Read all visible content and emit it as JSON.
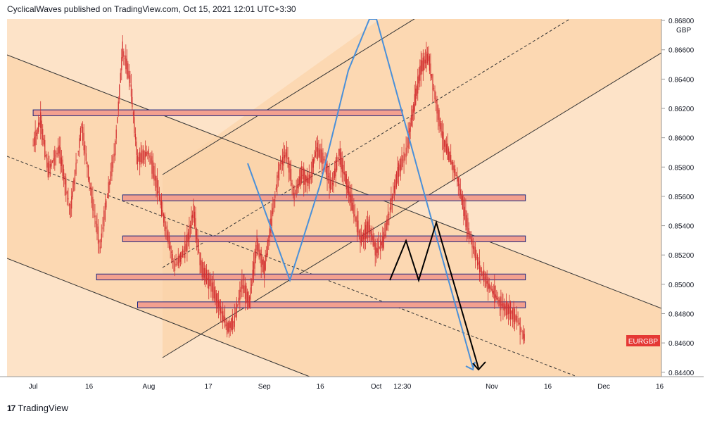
{
  "header": {
    "text": "CyclicalWaves published on TradingView.com, Oct 15, 2021 12:01 UTC+3:30"
  },
  "footer": {
    "brand": "TradingView",
    "logo_glyph": "17"
  },
  "colors": {
    "background_fill": "#fde3c8",
    "channel_fill": "#fbd3a8",
    "zone_fill": "#f3a08f",
    "zone_border": "#1a237e",
    "candle": "#d32f2f",
    "forecast_blue": "#4a90d9",
    "forecast_black": "#000000",
    "label_bg": "#e53935"
  },
  "chart_data": {
    "type": "candlestick",
    "symbol": "EURGBP",
    "currency": "GBP",
    "price_label": "EURGBP",
    "y_ticks": [
      "0.86800",
      "0.86600",
      "0.86400",
      "0.86200",
      "0.86000",
      "0.85800",
      "0.85600",
      "0.85400",
      "0.85200",
      "0.85000",
      "0.84800",
      "0.84600",
      "0.84400"
    ],
    "y_tick_values": [
      0.868,
      0.866,
      0.864,
      0.862,
      0.86,
      0.858,
      0.856,
      0.854,
      0.852,
      0.85,
      0.848,
      0.846,
      0.844
    ],
    "ylim": [
      0.8437,
      0.8681
    ],
    "x_ticks": [
      "Jul",
      "16",
      "Aug",
      "17",
      "Sep",
      "16",
      "Oct",
      "12:30",
      "Nov",
      "16",
      "Dec",
      "16"
    ],
    "x_tick_dates": [
      "2021-07-01",
      "2021-07-16",
      "2021-08-01",
      "2021-08-17",
      "2021-09-01",
      "2021-09-16",
      "2021-10-01",
      "2021-10-08",
      "2021-11-01",
      "2021-11-16",
      "2021-12-01",
      "2021-12-16"
    ],
    "price_path": [
      [
        "2021-07-01",
        0.8595
      ],
      [
        "2021-07-03",
        0.8612
      ],
      [
        "2021-07-05",
        0.8578
      ],
      [
        "2021-07-08",
        0.8592
      ],
      [
        "2021-07-11",
        0.855
      ],
      [
        "2021-07-14",
        0.8608
      ],
      [
        "2021-07-17",
        0.8555
      ],
      [
        "2021-07-19",
        0.8525
      ],
      [
        "2021-07-20",
        0.8545
      ],
      [
        "2021-07-23",
        0.8593
      ],
      [
        "2021-07-25",
        0.866
      ],
      [
        "2021-07-27",
        0.864
      ],
      [
        "2021-07-29",
        0.8585
      ],
      [
        "2021-08-01",
        0.859
      ],
      [
        "2021-08-03",
        0.857
      ],
      [
        "2021-08-05",
        0.8545
      ],
      [
        "2021-08-08",
        0.8512
      ],
      [
        "2021-08-11",
        0.8525
      ],
      [
        "2021-08-13",
        0.855
      ],
      [
        "2021-08-15",
        0.8512
      ],
      [
        "2021-08-18",
        0.8498
      ],
      [
        "2021-08-20",
        0.8485
      ],
      [
        "2021-08-22",
        0.847
      ],
      [
        "2021-08-24",
        0.8475
      ],
      [
        "2021-08-26",
        0.85
      ],
      [
        "2021-08-28",
        0.8488
      ],
      [
        "2021-08-30",
        0.8528
      ],
      [
        "2021-09-01",
        0.851
      ],
      [
        "2021-09-03",
        0.8545
      ],
      [
        "2021-09-05",
        0.858
      ],
      [
        "2021-09-07",
        0.859
      ],
      [
        "2021-09-09",
        0.856
      ],
      [
        "2021-09-11",
        0.8575
      ],
      [
        "2021-09-13",
        0.857
      ],
      [
        "2021-09-15",
        0.8592
      ],
      [
        "2021-09-17",
        0.8585
      ],
      [
        "2021-09-19",
        0.8565
      ],
      [
        "2021-09-21",
        0.859
      ],
      [
        "2021-09-23",
        0.857
      ],
      [
        "2021-09-25",
        0.855
      ],
      [
        "2021-09-27",
        0.853
      ],
      [
        "2021-09-29",
        0.854
      ],
      [
        "2021-10-01",
        0.8522
      ],
      [
        "2021-10-03",
        0.853
      ],
      [
        "2021-10-05",
        0.8555
      ],
      [
        "2021-10-07",
        0.8578
      ],
      [
        "2021-10-09",
        0.859
      ],
      [
        "2021-10-11",
        0.862
      ],
      [
        "2021-10-13",
        0.8648
      ],
      [
        "2021-10-15",
        0.8655
      ],
      [
        "2021-10-17",
        0.8625
      ],
      [
        "2021-10-19",
        0.8598
      ],
      [
        "2021-10-21",
        0.8585
      ],
      [
        "2021-10-23",
        0.857
      ],
      [
        "2021-10-25",
        0.8545
      ],
      [
        "2021-10-27",
        0.8525
      ],
      [
        "2021-10-29",
        0.851
      ],
      [
        "2021-10-31",
        0.85
      ],
      [
        "2021-11-02",
        0.8492
      ],
      [
        "2021-11-04",
        0.8485
      ],
      [
        "2021-11-06",
        0.8482
      ],
      [
        "2021-11-08",
        0.8475
      ],
      [
        "2021-11-10",
        0.8462
      ]
    ],
    "horizontal_zones": [
      {
        "from": "2021-07-01",
        "to": "2021-10-08",
        "low": 0.8615,
        "high": 0.8619
      },
      {
        "from": "2021-07-25",
        "to": "2021-11-10",
        "low": 0.8557,
        "high": 0.8561
      },
      {
        "from": "2021-07-25",
        "to": "2021-11-10",
        "low": 0.8529,
        "high": 0.8533
      },
      {
        "from": "2021-07-18",
        "to": "2021-11-10",
        "low": 0.8503,
        "high": 0.8507
      },
      {
        "from": "2021-07-29",
        "to": "2021-11-10",
        "low": 0.8484,
        "high": 0.8488
      }
    ]
  }
}
